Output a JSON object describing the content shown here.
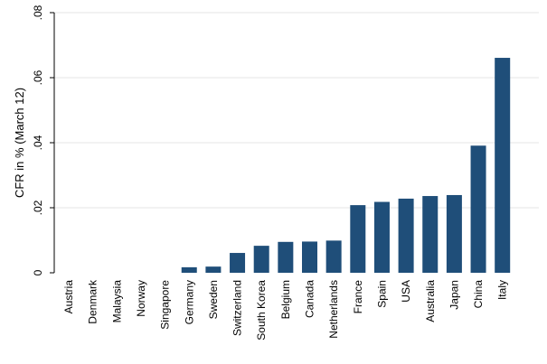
{
  "chart_data": {
    "type": "bar",
    "title": "",
    "xlabel": "",
    "ylabel": "CFR in % (March 12)",
    "ylim": [
      0,
      0.08
    ],
    "yticks": [
      0,
      0.02,
      0.04,
      0.06,
      0.08
    ],
    "ytick_labels": [
      "0",
      ".02",
      ".04",
      ".06",
      ".08"
    ],
    "grid": true,
    "legend": "none",
    "bar_color": "#1f4e79",
    "categories": [
      "Austria",
      "Denmark",
      "Malaysia",
      "Norway",
      "Singapore",
      "Germany",
      "Sweden",
      "Switzerland",
      "South Korea",
      "Belgium",
      "Canada",
      "Netherlands",
      "France",
      "Spain",
      "USA",
      "Australia",
      "Japan",
      "China",
      "Italy"
    ],
    "values": [
      0,
      0,
      0,
      0,
      0,
      0.0017,
      0.0019,
      0.0061,
      0.0083,
      0.0095,
      0.0096,
      0.0099,
      0.0208,
      0.0218,
      0.0228,
      0.0236,
      0.0239,
      0.0391,
      0.0661
    ]
  }
}
